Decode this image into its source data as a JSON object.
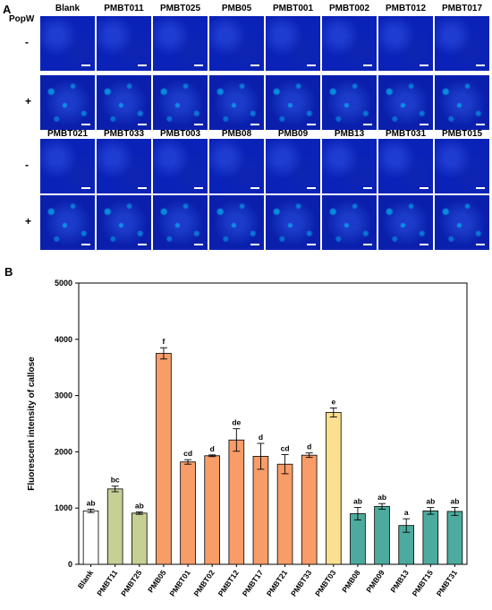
{
  "panel_a": {
    "letter": "A",
    "treatment_label": "PopW",
    "row_labels": [
      "-",
      "+",
      "-",
      "+"
    ],
    "top_columns": [
      "Blank",
      "PMBT011",
      "PMBT025",
      "PMB05",
      "PMBT001",
      "PMBT002",
      "PMBT012",
      "PMBT017"
    ],
    "bottom_columns": [
      "PMBT021",
      "PMBT033",
      "PMBT003",
      "PMB08",
      "PMB09",
      "PMB13",
      "PMBT031",
      "PMBT015"
    ]
  },
  "panel_b": {
    "letter": "B"
  },
  "chart_data": {
    "type": "bar",
    "title": "",
    "xlabel": "",
    "ylabel": "Fluorescent intensity of callose",
    "ylim": [
      0,
      5000
    ],
    "yticks": [
      0,
      1000,
      2000,
      3000,
      4000,
      5000
    ],
    "grid": false,
    "categories": [
      "Blank",
      "PMBT11",
      "PMBT25",
      "PMB05",
      "PMBT01",
      "PMBT02",
      "PMBT12",
      "PMBT17",
      "PMBT21",
      "PMBT33",
      "PMBT03",
      "PMB08",
      "PMB09",
      "PMB13",
      "PMBT15",
      "PMBT31"
    ],
    "values": [
      950,
      1340,
      910,
      3750,
      1820,
      1930,
      2210,
      1920,
      1780,
      1940,
      2700,
      900,
      1030,
      690,
      950,
      940
    ],
    "errors": [
      30,
      50,
      20,
      100,
      40,
      15,
      200,
      230,
      170,
      40,
      80,
      110,
      50,
      120,
      60,
      70
    ],
    "significance_letters": [
      "ab",
      "bc",
      "ab",
      "f",
      "cd",
      "d",
      "de",
      "d",
      "cd",
      "d",
      "e",
      "ab",
      "ab",
      "a",
      "ab",
      "ab"
    ],
    "colors": [
      "#ffffff",
      "#c6cf94",
      "#c6cf94",
      "#f89c68",
      "#f89c68",
      "#f89c68",
      "#f89c68",
      "#f89c68",
      "#f89c68",
      "#f89c68",
      "#fbe08f",
      "#4cab9e",
      "#4cab9e",
      "#4cab9e",
      "#4cab9e",
      "#4cab9e"
    ]
  }
}
